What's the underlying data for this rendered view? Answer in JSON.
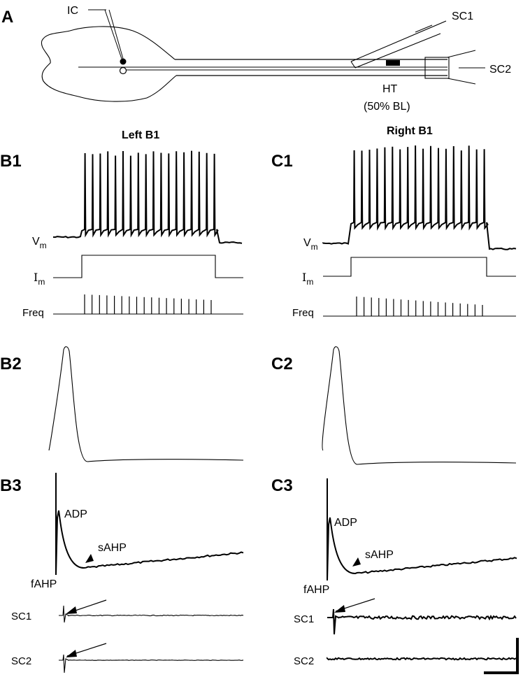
{
  "panels": {
    "A": "A",
    "B1": "B1",
    "B2": "B2",
    "B3": "B3",
    "C1": "C1",
    "C2": "C2",
    "C3": "C3"
  },
  "schematic": {
    "ic_label": "IC",
    "sc1_label": "SC1",
    "sc2_label": "SC2",
    "ht_label": "HT",
    "bl_label": "(50% BL)"
  },
  "columns": {
    "left": "Left B1",
    "right": "Right B1"
  },
  "trace_labels": {
    "vm": "V",
    "vm_sub": "m",
    "im": "I",
    "im_sub": "m",
    "freq": "Freq"
  },
  "annotations": {
    "adp": "ADP",
    "sahp": "sAHP",
    "fahp": "fAHP",
    "sc1": "SC1",
    "sc2": "SC2"
  },
  "spike_counts": {
    "left": 18,
    "right": 18
  }
}
